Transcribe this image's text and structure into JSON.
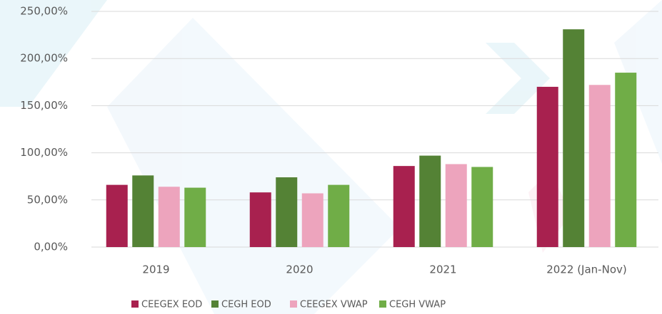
{
  "chart_data": {
    "type": "bar",
    "categories": [
      "2019",
      "2020",
      "2021",
      "2022 (Jan-Nov)"
    ],
    "series": [
      {
        "name": "CEEGEX EOD",
        "color": "#a8214f",
        "values": [
          66,
          58,
          86,
          170
        ]
      },
      {
        "name": "CEGH EOD",
        "color": "#548235",
        "values": [
          76,
          74,
          97,
          231
        ]
      },
      {
        "name": "CEEGEX VWAP",
        "color": "#eda4bd",
        "values": [
          64,
          57,
          88,
          172
        ]
      },
      {
        "name": "CEGH VWAP",
        "color": "#70ad47",
        "values": [
          63,
          66,
          85,
          185
        ]
      }
    ],
    "ylim": [
      0,
      250
    ],
    "yticks": [
      {
        "value": 0,
        "label": "0,00%"
      },
      {
        "value": 50,
        "label": "50,00%"
      },
      {
        "value": 100,
        "label": "100,00%"
      },
      {
        "value": 150,
        "label": "150,00%"
      },
      {
        "value": 200,
        "label": "200,00%"
      },
      {
        "value": 250,
        "label": "250,00%"
      }
    ],
    "grid": true,
    "legend": "bottom"
  }
}
